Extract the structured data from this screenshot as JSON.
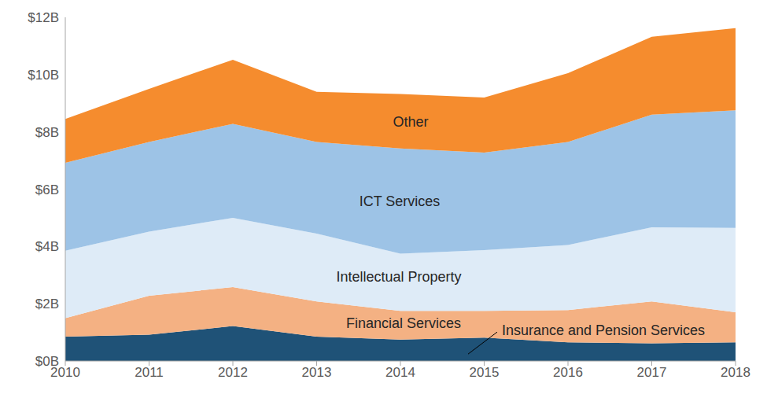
{
  "chart_data": {
    "type": "area",
    "stacked": true,
    "grid": false,
    "categories": [
      "2010",
      "2011",
      "2012",
      "2013",
      "2014",
      "2015",
      "2016",
      "2017",
      "2018"
    ],
    "ylim": [
      0,
      12
    ],
    "yticks": [
      {
        "value": 0,
        "label": "$0B"
      },
      {
        "value": 2,
        "label": "$2B"
      },
      {
        "value": 4,
        "label": "$4B"
      },
      {
        "value": 6,
        "label": "$6B"
      },
      {
        "value": 8,
        "label": "$8B"
      },
      {
        "value": 10,
        "label": "$10B"
      },
      {
        "value": 12,
        "label": "$12B"
      }
    ],
    "series": [
      {
        "name": "Insurance and Pension Services",
        "color": "#1f5277",
        "values": [
          0.85,
          0.92,
          1.22,
          0.85,
          0.75,
          0.82,
          0.65,
          0.62,
          0.65
        ]
      },
      {
        "name": "Financial Services",
        "color": "#f4b183",
        "values": [
          0.65,
          1.36,
          1.36,
          1.23,
          1.0,
          0.93,
          1.13,
          1.46,
          1.05
        ]
      },
      {
        "name": "Intellectual Property",
        "color": "#deebf7",
        "values": [
          2.35,
          2.24,
          2.42,
          2.37,
          2.0,
          2.12,
          2.27,
          2.59,
          2.95
        ]
      },
      {
        "name": "ICT Services",
        "color": "#9dc3e6",
        "values": [
          3.07,
          3.13,
          3.28,
          3.2,
          3.67,
          3.41,
          3.6,
          3.93,
          4.1
        ]
      },
      {
        "name": "Other",
        "color": "#f58c2e",
        "values": [
          1.53,
          1.85,
          2.24,
          1.75,
          1.9,
          1.92,
          2.4,
          2.72,
          2.87
        ]
      }
    ]
  }
}
